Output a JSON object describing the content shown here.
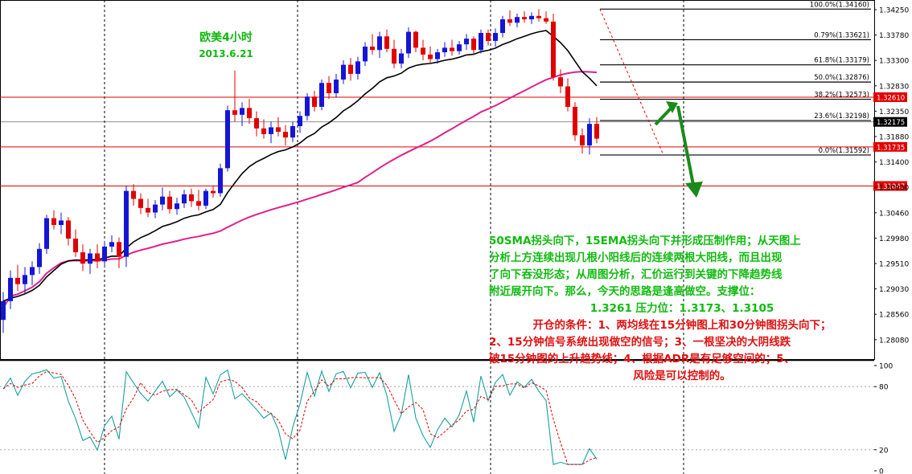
{
  "header": {
    "title": "欧美4小时",
    "date": "2013.6.21"
  },
  "chart_data": {
    "type": "candlestick",
    "symbol_title": "欧美4小时",
    "date_label": "2013.6.21",
    "price_axis_ticks": [
      "1.34250",
      "1.33780",
      "1.33300",
      "1.32830",
      "1.32350",
      "1.31880",
      "1.31400",
      "1.30930",
      "1.30460",
      "1.29980",
      "1.29510",
      "1.29030",
      "1.28560",
      "1.28080"
    ],
    "oscillator_axis_ticks": [
      "100",
      "80",
      "20",
      "0"
    ],
    "horizontal_levels": [
      {
        "label": "1.32610",
        "color": "#e00000"
      },
      {
        "label": "1.32175",
        "color": "#000000"
      },
      {
        "label": "1.31735",
        "color": "#e00000"
      },
      {
        "label": "1.31047",
        "color": "#e00000"
      }
    ],
    "fibonacci": [
      {
        "level": "100.0%",
        "price": "1.34160",
        "label": "100.0%(1.34160)"
      },
      {
        "level": "0.79%",
        "price": "1.33621",
        "label": "0.79%(1.33621)"
      },
      {
        "level": "61.8%",
        "price": "1.33179",
        "label": "61.8%(1.33179)"
      },
      {
        "level": "50.0%",
        "price": "1.32876",
        "label": "50.0%(1.32876)"
      },
      {
        "level": "38.2%",
        "price": "1.32573",
        "label": "38.2%(1.32573)"
      },
      {
        "level": "23.6%",
        "price": "1.32198",
        "label": "23.6%(1.32198)"
      },
      {
        "level": "0.0%",
        "price": "1.31592",
        "label": "0.0%(1.31592)"
      }
    ],
    "moving_averages": [
      {
        "name": "15EMA",
        "color": "#000000"
      },
      {
        "name": "50SMA",
        "color": "#e0208c"
      }
    ],
    "candles": [
      {
        "o": 1.2869,
        "h": 1.2918,
        "l": 1.2846,
        "c": 1.2902
      },
      {
        "o": 1.2902,
        "h": 1.2956,
        "l": 1.2888,
        "c": 1.2943
      },
      {
        "o": 1.2943,
        "h": 1.2966,
        "l": 1.292,
        "c": 1.2932
      },
      {
        "o": 1.2932,
        "h": 1.2962,
        "l": 1.2915,
        "c": 1.2948
      },
      {
        "o": 1.2948,
        "h": 1.2972,
        "l": 1.293,
        "c": 1.2962
      },
      {
        "o": 1.2962,
        "h": 1.3004,
        "l": 1.295,
        "c": 1.2994
      },
      {
        "o": 1.2994,
        "h": 1.3054,
        "l": 1.2985,
        "c": 1.3048
      },
      {
        "o": 1.3048,
        "h": 1.3062,
        "l": 1.3028,
        "c": 1.3036
      },
      {
        "o": 1.3036,
        "h": 1.3058,
        "l": 1.302,
        "c": 1.3044
      },
      {
        "o": 1.3044,
        "h": 1.305,
        "l": 1.3,
        "c": 1.3012
      },
      {
        "o": 1.3012,
        "h": 1.3028,
        "l": 1.298,
        "c": 1.2988
      },
      {
        "o": 1.2988,
        "h": 1.3002,
        "l": 1.2955,
        "c": 1.2968
      },
      {
        "o": 1.2968,
        "h": 1.2994,
        "l": 1.295,
        "c": 1.2986
      },
      {
        "o": 1.2986,
        "h": 1.3002,
        "l": 1.296,
        "c": 1.2972
      },
      {
        "o": 1.2972,
        "h": 1.3008,
        "l": 1.2962,
        "c": 1.2998
      },
      {
        "o": 1.2998,
        "h": 1.3018,
        "l": 1.2988,
        "c": 1.3006
      },
      {
        "o": 1.3006,
        "h": 1.3014,
        "l": 1.296,
        "c": 1.298
      },
      {
        "o": 1.298,
        "h": 1.3105,
        "l": 1.2962,
        "c": 1.3096
      },
      {
        "o": 1.3096,
        "h": 1.3108,
        "l": 1.307,
        "c": 1.3082
      },
      {
        "o": 1.3082,
        "h": 1.3092,
        "l": 1.3055,
        "c": 1.3066
      },
      {
        "o": 1.3066,
        "h": 1.3082,
        "l": 1.305,
        "c": 1.3058
      },
      {
        "o": 1.3058,
        "h": 1.308,
        "l": 1.3048,
        "c": 1.3072
      },
      {
        "o": 1.3072,
        "h": 1.3102,
        "l": 1.3062,
        "c": 1.3086
      },
      {
        "o": 1.3086,
        "h": 1.3096,
        "l": 1.3056,
        "c": 1.3064
      },
      {
        "o": 1.3064,
        "h": 1.3084,
        "l": 1.3054,
        "c": 1.3074
      },
      {
        "o": 1.3074,
        "h": 1.3098,
        "l": 1.3066,
        "c": 1.309
      },
      {
        "o": 1.309,
        "h": 1.31,
        "l": 1.3068,
        "c": 1.3078
      },
      {
        "o": 1.3078,
        "h": 1.3098,
        "l": 1.3062,
        "c": 1.307
      },
      {
        "o": 1.307,
        "h": 1.31,
        "l": 1.3064,
        "c": 1.3096
      },
      {
        "o": 1.3096,
        "h": 1.3106,
        "l": 1.3084,
        "c": 1.3092
      },
      {
        "o": 1.3092,
        "h": 1.3144,
        "l": 1.3086,
        "c": 1.3136
      },
      {
        "o": 1.3136,
        "h": 1.3246,
        "l": 1.313,
        "c": 1.3238
      },
      {
        "o": 1.3238,
        "h": 1.3308,
        "l": 1.3218,
        "c": 1.323
      },
      {
        "o": 1.323,
        "h": 1.3252,
        "l": 1.321,
        "c": 1.3242
      },
      {
        "o": 1.3242,
        "h": 1.3258,
        "l": 1.3214,
        "c": 1.3224
      },
      {
        "o": 1.3224,
        "h": 1.3236,
        "l": 1.3192,
        "c": 1.3206
      },
      {
        "o": 1.3206,
        "h": 1.3222,
        "l": 1.3188,
        "c": 1.3196
      },
      {
        "o": 1.3196,
        "h": 1.3218,
        "l": 1.318,
        "c": 1.3208
      },
      {
        "o": 1.3208,
        "h": 1.3226,
        "l": 1.3192,
        "c": 1.32
      },
      {
        "o": 1.32,
        "h": 1.3212,
        "l": 1.3176,
        "c": 1.319
      },
      {
        "o": 1.319,
        "h": 1.3218,
        "l": 1.3182,
        "c": 1.321
      },
      {
        "o": 1.321,
        "h": 1.3236,
        "l": 1.3198,
        "c": 1.3228
      },
      {
        "o": 1.3228,
        "h": 1.3268,
        "l": 1.322,
        "c": 1.3262
      },
      {
        "o": 1.3262,
        "h": 1.3272,
        "l": 1.3236,
        "c": 1.3244
      },
      {
        "o": 1.3244,
        "h": 1.3292,
        "l": 1.3238,
        "c": 1.3286
      },
      {
        "o": 1.3286,
        "h": 1.3298,
        "l": 1.3258,
        "c": 1.3268
      },
      {
        "o": 1.3268,
        "h": 1.3302,
        "l": 1.326,
        "c": 1.3292
      },
      {
        "o": 1.3292,
        "h": 1.3326,
        "l": 1.3284,
        "c": 1.3318
      },
      {
        "o": 1.3318,
        "h": 1.333,
        "l": 1.329,
        "c": 1.3302
      },
      {
        "o": 1.3302,
        "h": 1.3332,
        "l": 1.3292,
        "c": 1.3324
      },
      {
        "o": 1.3324,
        "h": 1.3358,
        "l": 1.3316,
        "c": 1.335
      },
      {
        "o": 1.335,
        "h": 1.3372,
        "l": 1.3336,
        "c": 1.3344
      },
      {
        "o": 1.3344,
        "h": 1.3376,
        "l": 1.333,
        "c": 1.3368
      },
      {
        "o": 1.3368,
        "h": 1.338,
        "l": 1.334,
        "c": 1.3346
      },
      {
        "o": 1.3346,
        "h": 1.3362,
        "l": 1.3312,
        "c": 1.332
      },
      {
        "o": 1.332,
        "h": 1.3346,
        "l": 1.3312,
        "c": 1.3338
      },
      {
        "o": 1.3338,
        "h": 1.3384,
        "l": 1.333,
        "c": 1.3376
      },
      {
        "o": 1.3376,
        "h": 1.3378,
        "l": 1.334,
        "c": 1.3348
      },
      {
        "o": 1.3348,
        "h": 1.3362,
        "l": 1.3326,
        "c": 1.3336
      },
      {
        "o": 1.3336,
        "h": 1.335,
        "l": 1.332,
        "c": 1.3328
      },
      {
        "o": 1.3328,
        "h": 1.3346,
        "l": 1.332,
        "c": 1.334
      },
      {
        "o": 1.334,
        "h": 1.3358,
        "l": 1.3332,
        "c": 1.3348
      },
      {
        "o": 1.3348,
        "h": 1.3362,
        "l": 1.3334,
        "c": 1.3342
      },
      {
        "o": 1.3342,
        "h": 1.336,
        "l": 1.3336,
        "c": 1.3354
      },
      {
        "o": 1.3354,
        "h": 1.3372,
        "l": 1.3344,
        "c": 1.3364
      },
      {
        "o": 1.3364,
        "h": 1.3368,
        "l": 1.3336,
        "c": 1.3344
      },
      {
        "o": 1.3344,
        "h": 1.338,
        "l": 1.3338,
        "c": 1.3374
      },
      {
        "o": 1.3374,
        "h": 1.338,
        "l": 1.3352,
        "c": 1.336
      },
      {
        "o": 1.336,
        "h": 1.3382,
        "l": 1.335,
        "c": 1.3374
      },
      {
        "o": 1.3374,
        "h": 1.3404,
        "l": 1.3366,
        "c": 1.3398
      },
      {
        "o": 1.3398,
        "h": 1.3414,
        "l": 1.3386,
        "c": 1.3392
      },
      {
        "o": 1.3392,
        "h": 1.3408,
        "l": 1.3384,
        "c": 1.3402
      },
      {
        "o": 1.3402,
        "h": 1.3412,
        "l": 1.3392,
        "c": 1.3398
      },
      {
        "o": 1.3398,
        "h": 1.341,
        "l": 1.339,
        "c": 1.3404
      },
      {
        "o": 1.3404,
        "h": 1.3416,
        "l": 1.3394,
        "c": 1.34
      },
      {
        "o": 1.34,
        "h": 1.3412,
        "l": 1.339,
        "c": 1.3394
      },
      {
        "o": 1.3394,
        "h": 1.3408,
        "l": 1.329,
        "c": 1.3296
      },
      {
        "o": 1.3296,
        "h": 1.331,
        "l": 1.3268,
        "c": 1.328
      },
      {
        "o": 1.328,
        "h": 1.3294,
        "l": 1.3236,
        "c": 1.3244
      },
      {
        "o": 1.3244,
        "h": 1.3252,
        "l": 1.3184,
        "c": 1.3194
      },
      {
        "o": 1.3194,
        "h": 1.3206,
        "l": 1.3162,
        "c": 1.3176
      },
      {
        "o": 1.3176,
        "h": 1.3224,
        "l": 1.316,
        "c": 1.3214
      },
      {
        "o": 1.3214,
        "h": 1.3226,
        "l": 1.318,
        "c": 1.3188
      }
    ],
    "annotations": [
      "50SMA拐头向下，15EMA拐头向下并形成压制作用；从天图上",
      "分析上方连续出现几根小阳线后的连续两根大阳线，而且出现",
      "了向下吞没形态；从周图分析，汇价运行到关键的下降趋势线",
      "附近展开向下。那么，今天的思路是逢高做空。支撑位：",
      "1.3261   压力位：1.3173、1.3105",
      "开仓的条件：1、两均线在15分钟图上和30分钟图拐头向下；",
      "2、15分钟信号系统出现做空的信号；3、一根坚决的大阴线跌",
      "破15分钟图的上升趋势线；4、根据ADR是有足够空间的；5、",
      "风险是可以控制的。"
    ]
  },
  "analysis": {
    "green_lines": [
      "50SMA拐头向下，15EMA拐头向下并形成压制作用；从天图上",
      "分析上方连续出现几根小阳线后的连续两根大阳线，而且出现",
      "了向下吞没形态；从周图分析，汇价运行到关键的下降趋势线",
      "附近展开向下。那么，今天的思路是逢高做空。支撑位："
    ],
    "green_center": "1.3261   压力位：1.3173、1.3105",
    "red_first": "开仓的条件：1、两均线在15分钟图上和30分钟图拐头向下；",
    "red_lines": [
      "2、15分钟信号系统出现做空的信号；3、一根坚决的大阴线跌",
      "破15分钟图的上升趋势线；4、根据ADR是有足够空间的；5、"
    ],
    "red_center": "风险是可以控制的。"
  }
}
